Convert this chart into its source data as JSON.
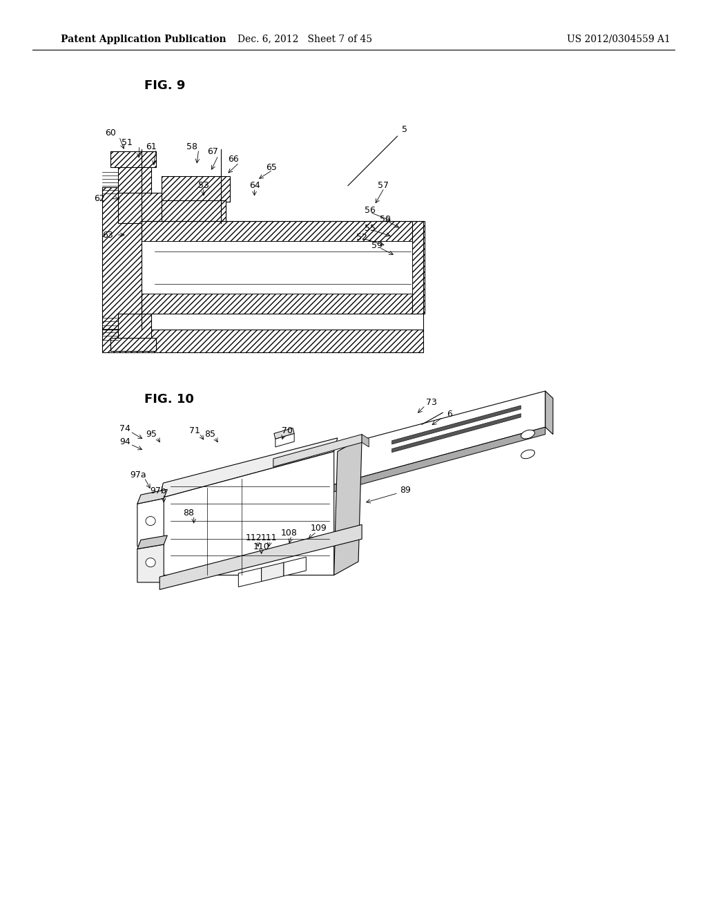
{
  "fig9_title": "FIG. 9",
  "fig10_title": "FIG. 10",
  "header_left": "Patent Application Publication",
  "header_mid": "Dec. 6, 2012   Sheet 7 of 45",
  "header_right": "US 2012/0304559 A1",
  "bg_color": "#ffffff",
  "line_color": "#000000",
  "font_size_header": 10,
  "font_size_fig": 13,
  "font_size_label": 9
}
